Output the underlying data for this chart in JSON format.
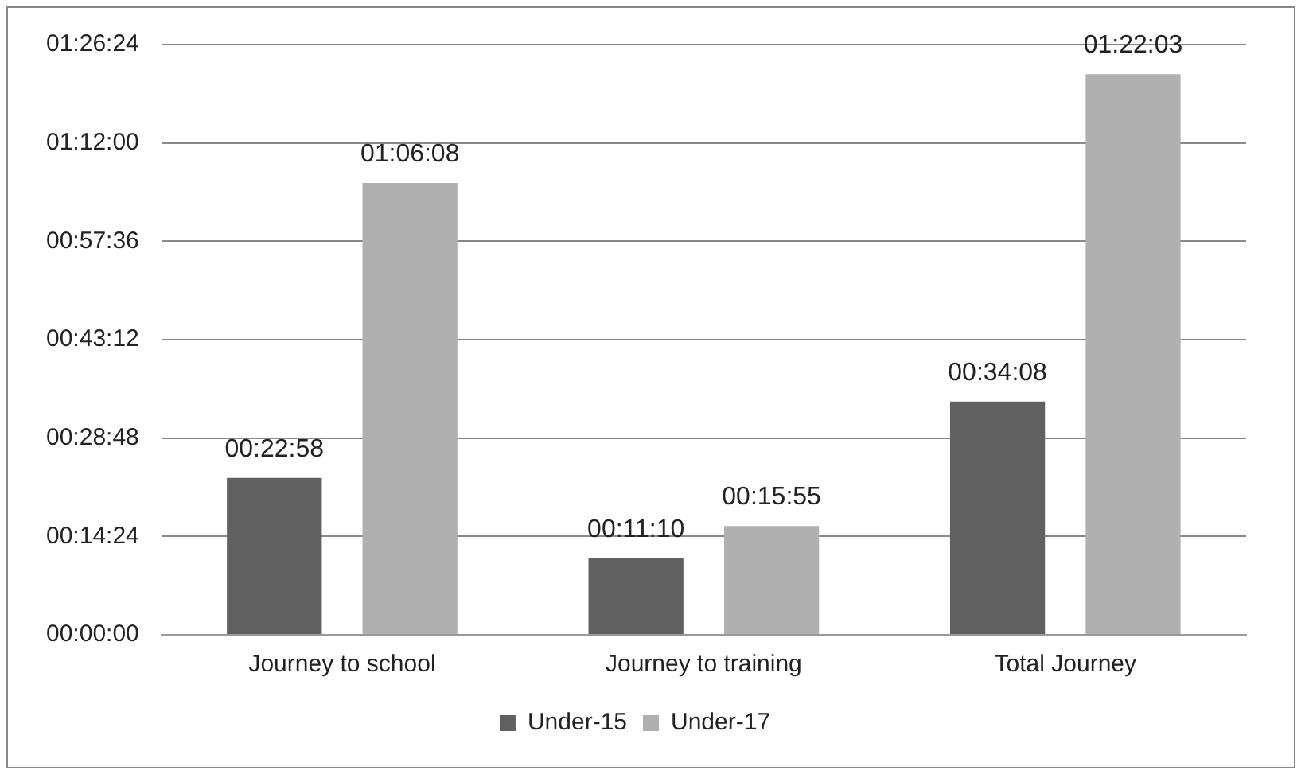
{
  "chart_data": {
    "type": "bar",
    "categories": [
      "Journey to school",
      "Journey to training",
      "Total Journey"
    ],
    "series": [
      {
        "name": "Under-15",
        "color": "#606060",
        "values": [
          1378,
          670,
          2048
        ],
        "value_labels": [
          "00:22:58",
          "00:11:10",
          "00:34:08"
        ]
      },
      {
        "name": "Under-17",
        "color": "#b0b0b0",
        "values": [
          3968,
          955,
          4923
        ],
        "value_labels": [
          "01:06:08",
          "00:15:55",
          "01:22:03"
        ]
      }
    ],
    "ylim": [
      0,
      5184
    ],
    "yticks": [
      {
        "value": 0,
        "label": "00:00:00"
      },
      {
        "value": 864,
        "label": "00:14:24"
      },
      {
        "value": 1728,
        "label": "00:28:48"
      },
      {
        "value": 2592,
        "label": "00:43:12"
      },
      {
        "value": 3456,
        "label": "00:57:36"
      },
      {
        "value": 4320,
        "label": "01:12:00"
      },
      {
        "value": 5184,
        "label": "01:26:24"
      }
    ],
    "grid": "y",
    "legend": "bottom"
  }
}
